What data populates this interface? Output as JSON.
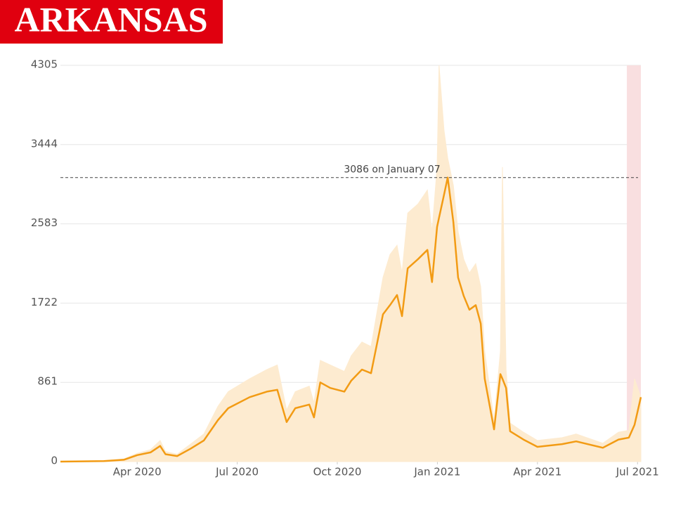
{
  "chart_data": {
    "type": "line",
    "title": "ARKANSAS",
    "title_color": "#e0000f",
    "x": [
      0.7,
      2.0,
      2.6,
      3.0,
      3.4,
      3.69,
      3.85,
      4.2,
      4.6,
      5.0,
      5.42,
      5.73,
      6.37,
      6.89,
      7.2,
      7.48,
      7.74,
      8.16,
      8.3,
      8.49,
      8.79,
      9.21,
      9.42,
      9.74,
      10.01,
      10.37,
      10.58,
      10.79,
      10.94,
      11.11,
      11.42,
      11.7,
      11.84,
      11.99,
      12.05,
      12.2,
      12.31,
      12.48,
      12.62,
      12.79,
      12.96,
      13.15,
      13.3,
      13.42,
      13.7,
      13.89,
      13.95,
      14.06,
      14.18,
      14.58,
      15.0,
      15.74,
      16.16,
      16.96,
      17.43,
      17.74,
      17.91,
      18.1
    ],
    "series": [
      {
        "color": "#fdebd0",
        "values": [
          0,
          10,
          30,
          90,
          130,
          230,
          110,
          80,
          190,
          300,
          600,
          760,
          900,
          1000,
          1050,
          560,
          760,
          820,
          640,
          1100,
          1050,
          980,
          1150,
          1300,
          1250,
          2000,
          2250,
          2350,
          2050,
          2700,
          2800,
          2950,
          2500,
          3200,
          4305,
          3600,
          3300,
          3000,
          2500,
          2200,
          2050,
          2150,
          1900,
          1200,
          450,
          1200,
          3200,
          1000,
          420,
          320,
          230,
          260,
          300,
          200,
          320,
          340,
          900,
          700
        ]
      },
      {
        "color": "#f29b14",
        "values": [
          0,
          5,
          20,
          70,
          100,
          170,
          80,
          60,
          140,
          230,
          450,
          580,
          700,
          760,
          780,
          430,
          580,
          620,
          480,
          860,
          800,
          760,
          880,
          1000,
          960,
          1600,
          1700,
          1810,
          1580,
          2100,
          2200,
          2300,
          1950,
          2550,
          2650,
          2900,
          3086,
          2600,
          2000,
          1800,
          1650,
          1700,
          1500,
          900,
          350,
          950,
          900,
          800,
          330,
          240,
          160,
          190,
          220,
          150,
          240,
          260,
          400,
          700
        ]
      }
    ],
    "xlim": [
      0.7,
      18.1
    ],
    "xticks": [
      {
        "value": 3,
        "label": "Apr 2020"
      },
      {
        "value": 6,
        "label": "Jul 2020"
      },
      {
        "value": 9,
        "label": "Oct 2020"
      },
      {
        "value": 12,
        "label": "Jan 2021"
      },
      {
        "value": 15,
        "label": "Apr 2021"
      },
      {
        "value": 18,
        "label": "Jul 2021"
      }
    ],
    "ylim": [
      0,
      4305
    ],
    "yticks": [
      0,
      861,
      1722,
      2583,
      3444,
      4305
    ],
    "grid": true,
    "reference_line": {
      "value": 3086,
      "label": "3086 on January 07"
    },
    "shaded_range": {
      "x": [
        17.68,
        18.1
      ],
      "color": "#f9dfe0"
    }
  }
}
